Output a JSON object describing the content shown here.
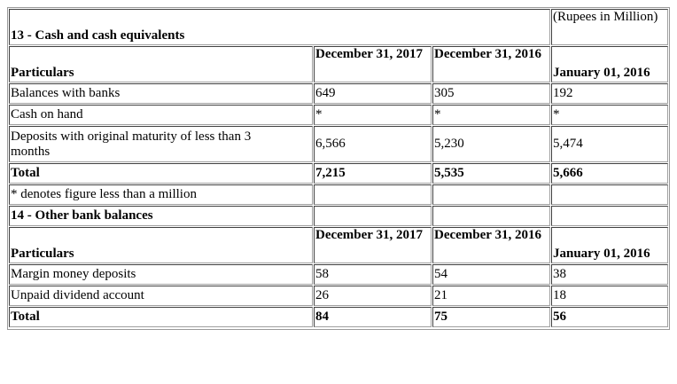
{
  "note13": {
    "unit": "(Rupees in Million)",
    "heading": "13 - Cash and cash equivalents",
    "header": {
      "particulars": "Particulars",
      "col1": "December 31, 2017",
      "col2": "December 31, 2016",
      "col3": "January 01, 2016"
    },
    "rows": [
      {
        "label": "Balances with banks",
        "v1": "649",
        "v2": "305",
        "v3": "192"
      },
      {
        "label": "Cash on hand",
        "v1": "*",
        "v2": "*",
        "v3": "*"
      },
      {
        "label": "Deposits with original maturity of less than 3 months",
        "v1": "6,566",
        "v2": "5,230",
        "v3": "5,474"
      }
    ],
    "total": {
      "label": "Total",
      "v1": "7,215",
      "v2": "5,535",
      "v3": "5,666"
    },
    "footnote": "* denotes figure less than a million"
  },
  "note14": {
    "heading": "14 - Other bank balances",
    "header": {
      "particulars": "Particulars",
      "col1": "December 31, 2017",
      "col2": "December 31, 2016",
      "col3": "January 01, 2016"
    },
    "rows": [
      {
        "label": "Margin money deposits",
        "v1": "58",
        "v2": "54",
        "v3": "38"
      },
      {
        "label": "Unpaid dividend account",
        "v1": "26",
        "v2": "21",
        "v3": "18"
      }
    ],
    "total": {
      "label": "Total",
      "v1": "84",
      "v2": "75",
      "v3": "56"
    }
  }
}
